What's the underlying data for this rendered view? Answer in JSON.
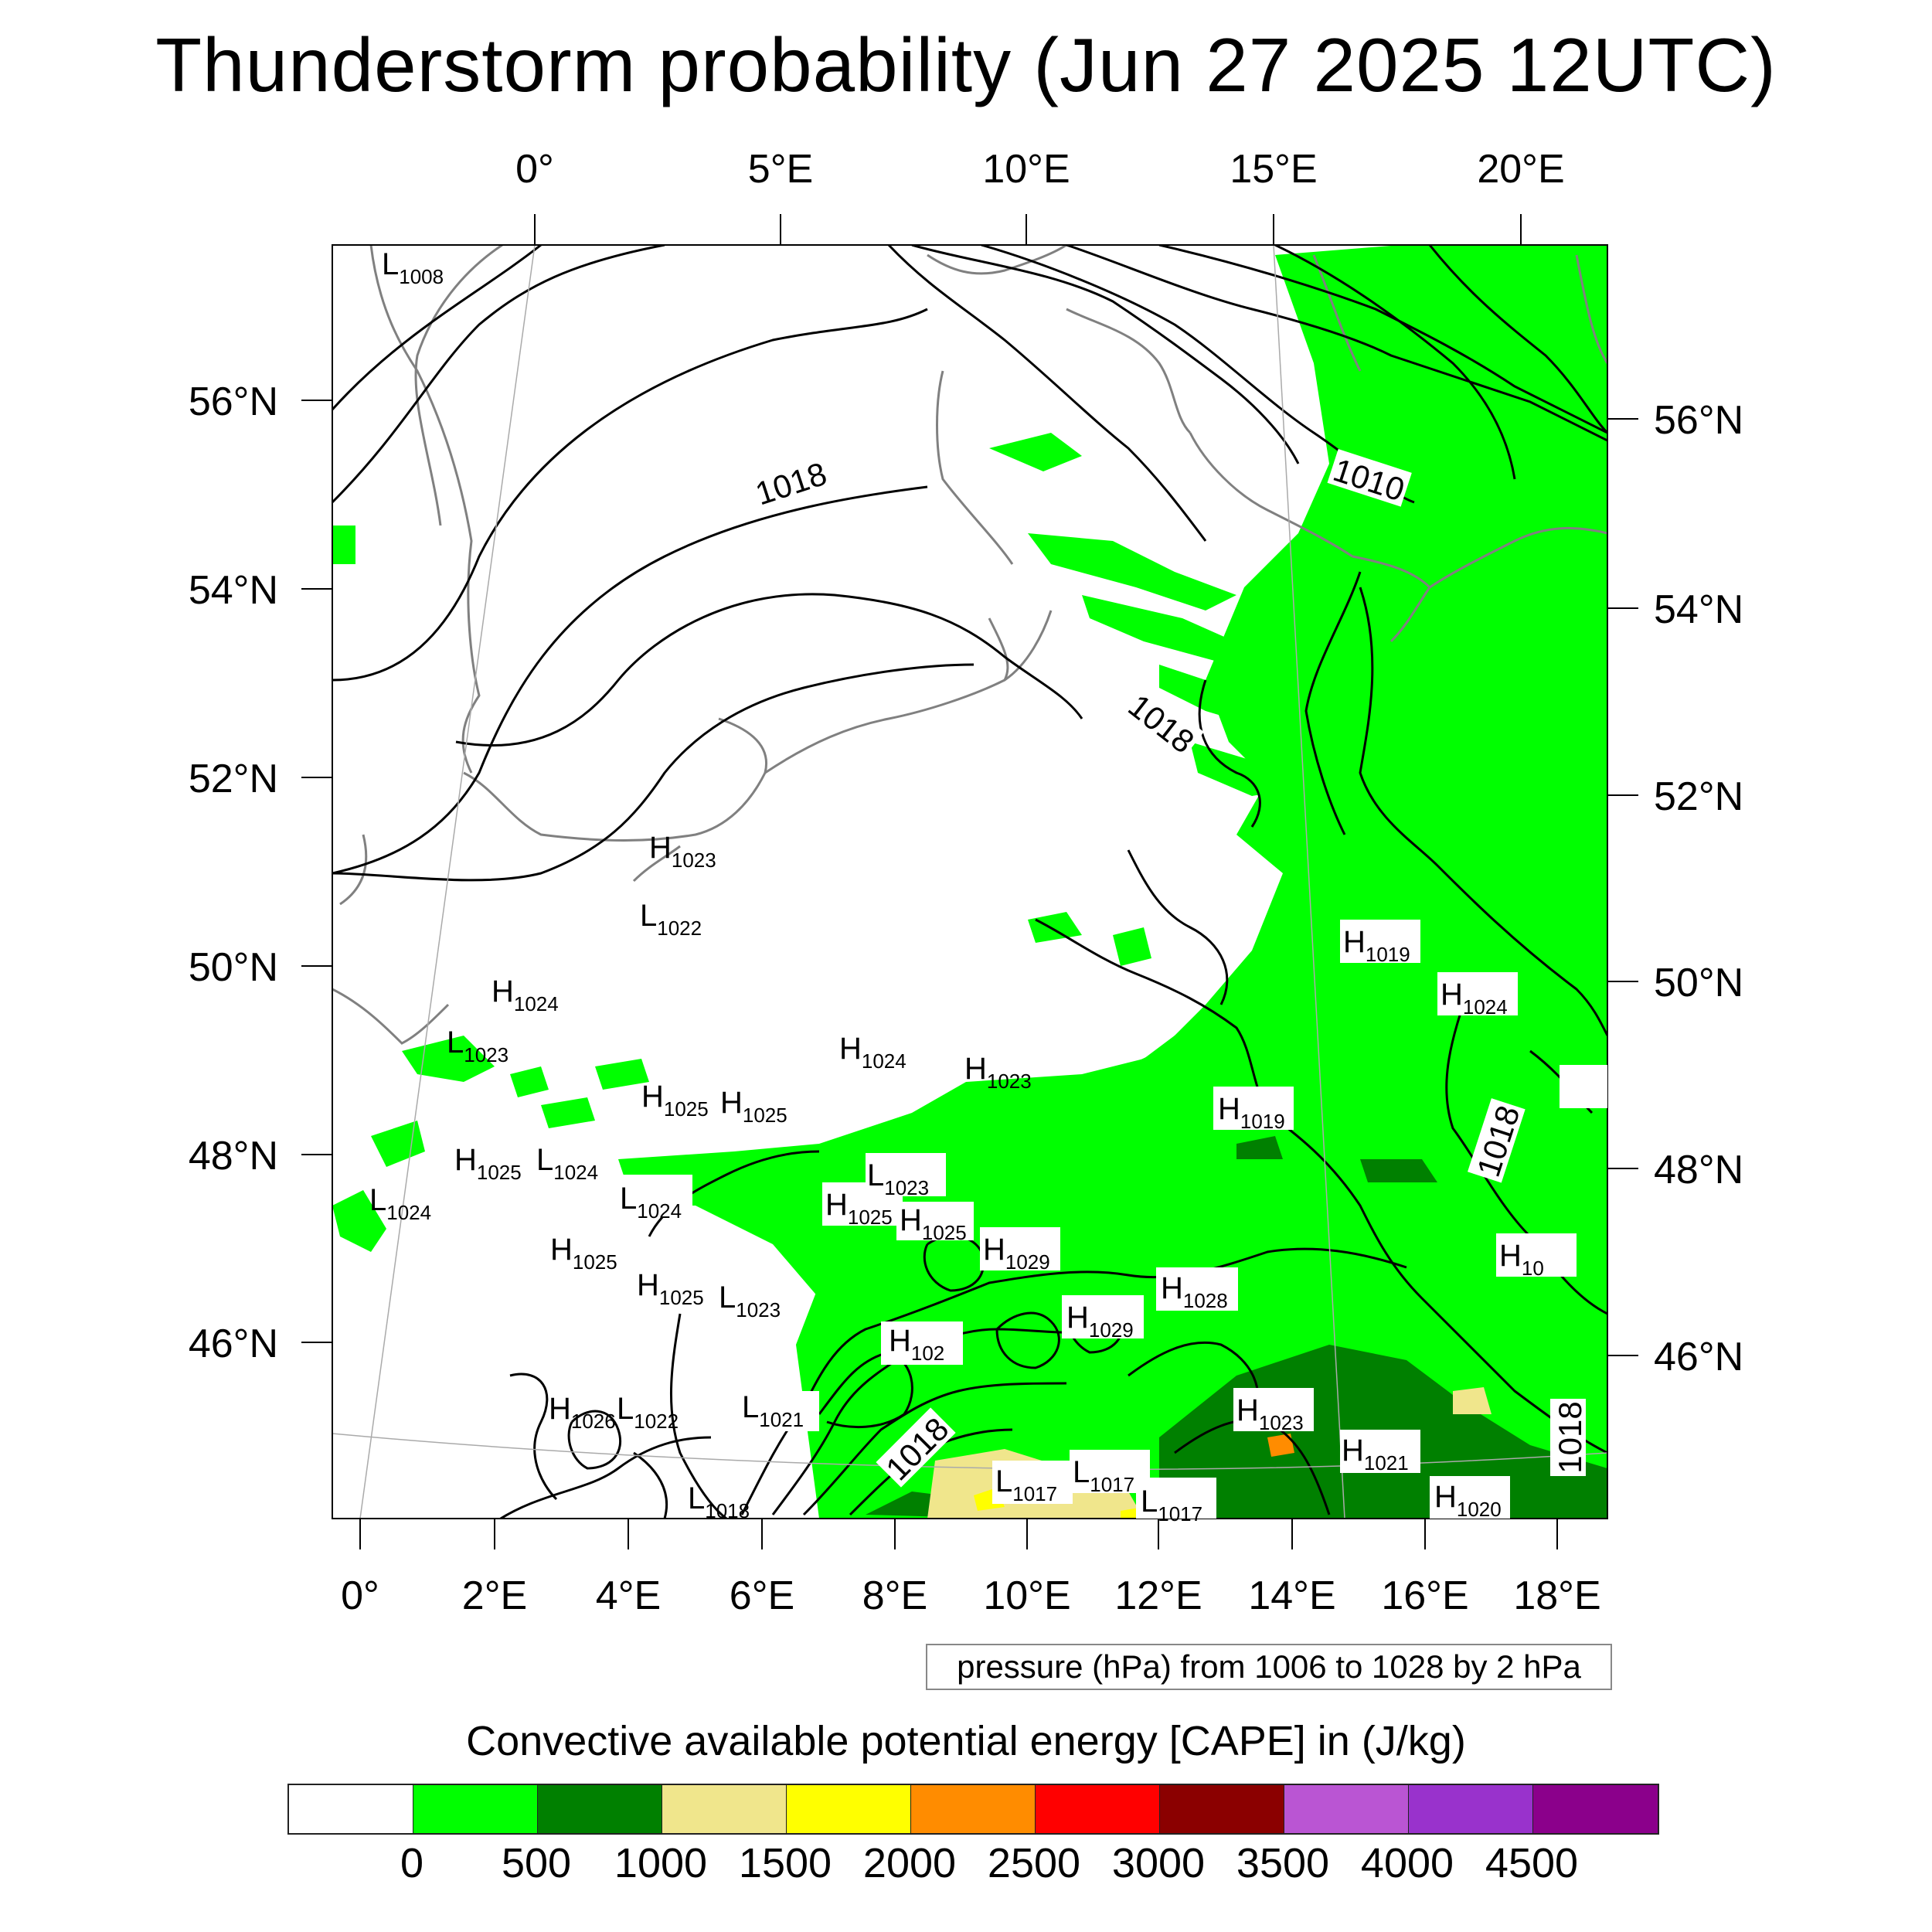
{
  "title": "Thunderstorm probability (Jun 27 2025 12UTC)",
  "map": {
    "top_lon_labels": [
      "0°",
      "5°E",
      "10°E",
      "15°E",
      "20°E"
    ],
    "bottom_lon_labels": [
      "0°",
      "2°E",
      "4°E",
      "6°E",
      "8°E",
      "10°E",
      "12°E",
      "14°E",
      "16°E",
      "18°E"
    ],
    "left_lat_labels": [
      "56°N",
      "54°N",
      "52°N",
      "50°N",
      "48°N",
      "46°N"
    ],
    "right_lat_labels": [
      "56°N",
      "54°N",
      "52°N",
      "50°N",
      "48°N",
      "46°N"
    ],
    "isobar_labels": [
      "1018",
      "1010",
      "1018",
      "1018",
      "1018",
      "1018"
    ],
    "pressure_centers": [
      {
        "type": "L",
        "value": "1008"
      },
      {
        "type": "H",
        "value": "1023"
      },
      {
        "type": "L",
        "value": "1022"
      },
      {
        "type": "H",
        "value": "1024"
      },
      {
        "type": "L",
        "value": "1023"
      },
      {
        "type": "H",
        "value": "1024"
      },
      {
        "type": "H",
        "value": "1023"
      },
      {
        "type": "H",
        "value": "1025"
      },
      {
        "type": "H",
        "value": "1025"
      },
      {
        "type": "H",
        "value": "1025"
      },
      {
        "type": "L",
        "value": "1024"
      },
      {
        "type": "L",
        "value": "1024"
      },
      {
        "type": "L",
        "value": "1024"
      },
      {
        "type": "H",
        "value": "1025"
      },
      {
        "type": "H",
        "value": "1025"
      },
      {
        "type": "H",
        "value": "1025"
      },
      {
        "type": "L",
        "value": "1023"
      },
      {
        "type": "H",
        "value": "1025"
      },
      {
        "type": "L",
        "value": "1023"
      },
      {
        "type": "H",
        "value": "1029"
      },
      {
        "type": "H",
        "value": "1029"
      },
      {
        "type": "H",
        "value": "1028"
      },
      {
        "type": "H",
        "value": "102"
      },
      {
        "type": "H",
        "value": "1026"
      },
      {
        "type": "L",
        "value": "1022"
      },
      {
        "type": "L",
        "value": "1021"
      },
      {
        "type": "L",
        "value": "1018"
      },
      {
        "type": "L",
        "value": "1017"
      },
      {
        "type": "L",
        "value": "1017"
      },
      {
        "type": "L",
        "value": "1017"
      },
      {
        "type": "H",
        "value": "1023"
      },
      {
        "type": "H",
        "value": "1021"
      },
      {
        "type": "H",
        "value": "1020"
      },
      {
        "type": "H",
        "value": "1019"
      },
      {
        "type": "H",
        "value": "1024"
      },
      {
        "type": "H",
        "value": "1019"
      },
      {
        "type": "H",
        "value": "10"
      }
    ]
  },
  "info_box": "pressure (hPa) from 1006 to 1028 by 2 hPa",
  "colorbar": {
    "title": "Convective available potential energy [CAPE] in (J/kg)",
    "colors": [
      "#ffffff",
      "#00ff00",
      "#008000",
      "#f0e68c",
      "#ffff00",
      "#ff8c00",
      "#ff0000",
      "#8b0000",
      "#ba55d3",
      "#9932cc",
      "#8b008b"
    ],
    "labels": [
      "0",
      "500",
      "1000",
      "1500",
      "2000",
      "2500",
      "3000",
      "3500",
      "4000",
      "4500"
    ]
  }
}
